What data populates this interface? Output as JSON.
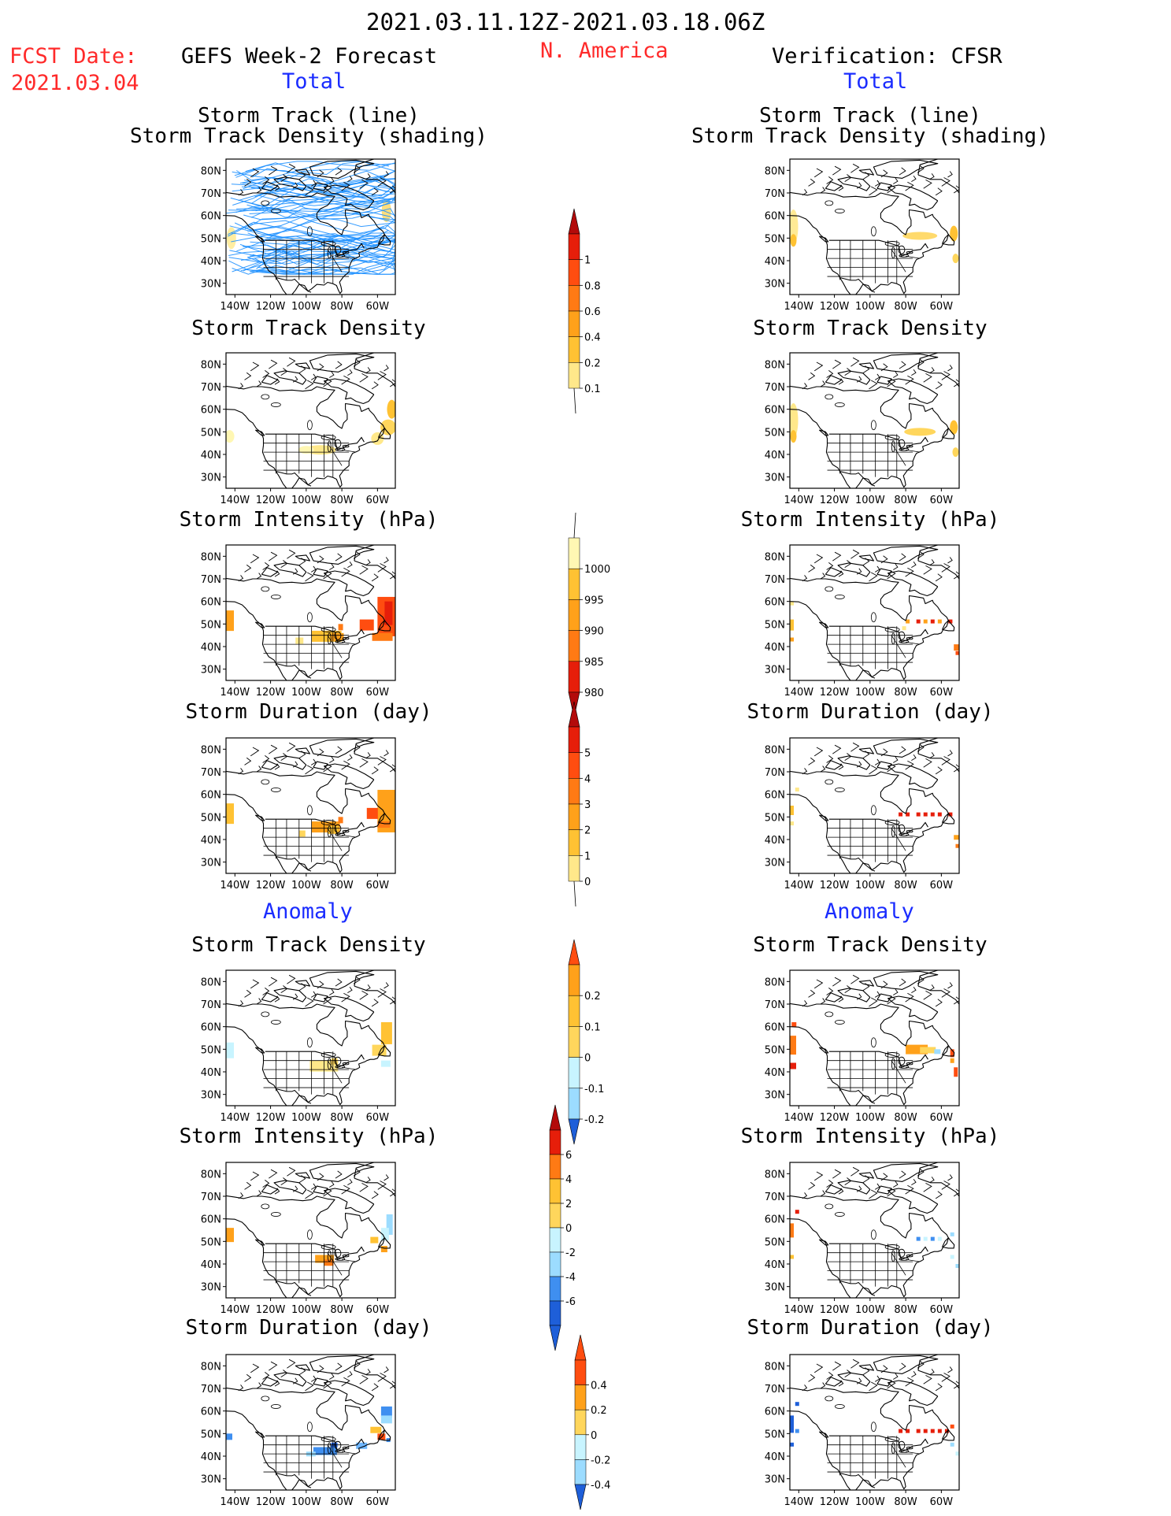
{
  "header": {
    "period": "2021.03.11.12Z-2021.03.18.06Z",
    "fcst_label": "FCST Date:",
    "fcst_date": "2021.03.04",
    "left_title": "GEFS Week-2 Forecast",
    "region": "N. America",
    "right_title": "Verification: CFSR",
    "total_label": "Total",
    "anomaly_label": "Anomaly"
  },
  "axes": {
    "lat_ticks": [
      "80N",
      "70N",
      "60N",
      "50N",
      "40N",
      "30N"
    ],
    "lon_ticks": [
      "140W",
      "120W",
      "100W",
      "80W",
      "60W"
    ]
  },
  "panel_titles": {
    "track_line": "Storm Track (line)",
    "track_shading": "Storm Track Density (shading)",
    "density": "Storm Track Density",
    "intensity": "Storm Intensity (hPa)",
    "duration": "Storm Duration (day)"
  },
  "colorbars": {
    "density": [
      "1",
      "0.8",
      "0.6",
      "0.4",
      "0.2",
      "0.1"
    ],
    "intensity": [
      "1000",
      "995",
      "990",
      "985",
      "980"
    ],
    "duration": [
      "5",
      "4",
      "3",
      "2",
      "1",
      "0"
    ],
    "anom_density": [
      "0.2",
      "0.1",
      "0",
      "-0.1",
      "-0.2"
    ],
    "anom_intensity": [
      "6",
      "4",
      "2",
      "0",
      "-2",
      "-4",
      "-6"
    ],
    "anom_duration": [
      "0.4",
      "0.2",
      "0",
      "-0.2",
      "-0.4"
    ]
  },
  "colors": {
    "track_line": "#1e90ff",
    "red_text": "#ff2a2a",
    "blue_text": "#1a2cff"
  }
}
